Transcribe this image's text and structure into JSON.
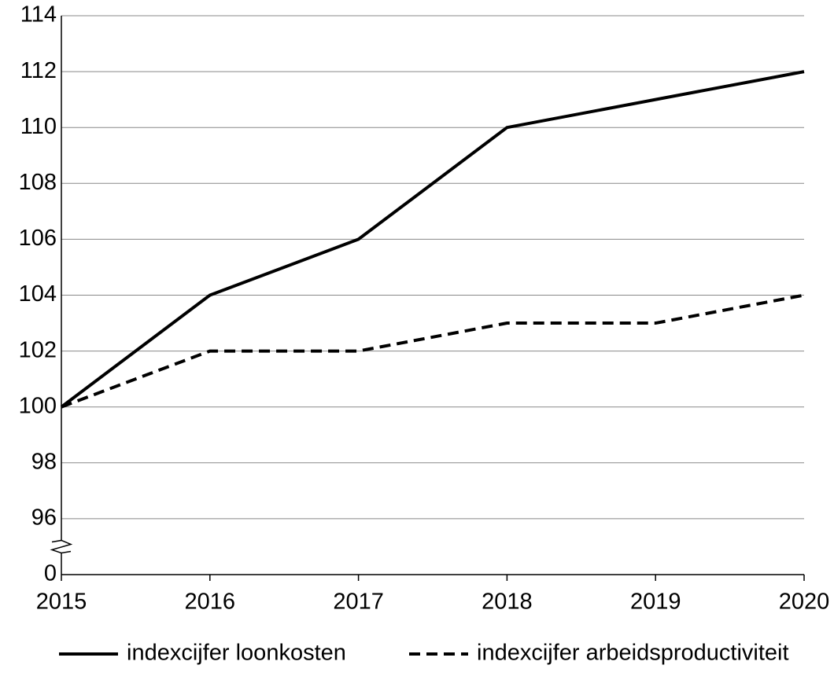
{
  "chart_data": {
    "type": "line",
    "x": [
      2015,
      2016,
      2017,
      2018,
      2019,
      2020
    ],
    "xlim": [
      2015,
      2020
    ],
    "xticks": [
      2015,
      2016,
      2017,
      2018,
      2019,
      2020
    ],
    "ylim": [
      0,
      114
    ],
    "yticks": [
      0,
      96,
      98,
      100,
      102,
      104,
      106,
      108,
      110,
      112,
      114
    ],
    "axis_break": [
      0,
      96
    ],
    "grid": true,
    "series": [
      {
        "name": "indexcijfer loonkosten",
        "color": "#000000",
        "dash": "solid",
        "values": [
          100,
          104,
          106,
          110,
          111,
          112
        ]
      },
      {
        "name": "indexcijfer arbeidsproductiviteit",
        "color": "#000000",
        "dash": "dashed",
        "values": [
          100,
          102,
          102,
          103,
          103,
          104
        ]
      }
    ]
  }
}
